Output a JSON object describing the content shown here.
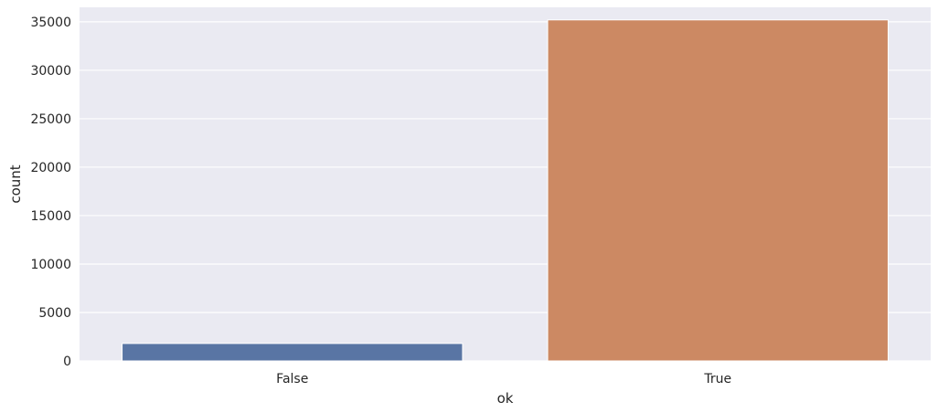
{
  "chart_data": {
    "type": "bar",
    "categories": [
      "False",
      "True"
    ],
    "values": [
      1800,
      35200
    ],
    "xlabel": "ok",
    "ylabel": "count",
    "ylim": [
      0,
      36500
    ],
    "yticks": [
      0,
      5000,
      10000,
      15000,
      20000,
      25000,
      30000,
      35000
    ],
    "grid": true,
    "colors": {
      "background": "#eaeaf2",
      "grid": "#ffffff",
      "bars": [
        "#5975a4",
        "#cc8963"
      ]
    }
  }
}
